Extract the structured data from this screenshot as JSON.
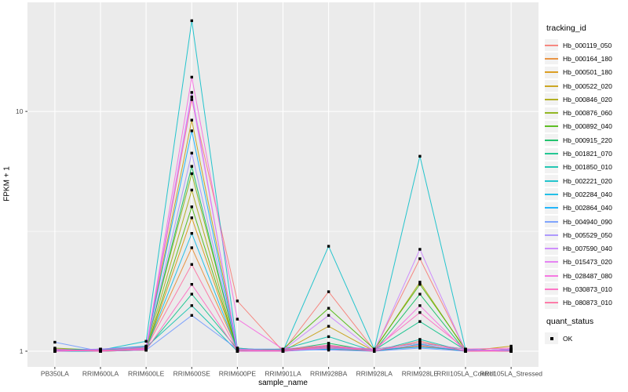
{
  "chart_data": {
    "type": "line",
    "title": "",
    "xlabel": "sample_name",
    "ylabel": "FPKM + 1",
    "y_scale": "log10",
    "ylim": [
      0.86,
      28.5
    ],
    "y_ticks": [
      1,
      10
    ],
    "y_tick_labels": [
      "1",
      "10"
    ],
    "y_minor_gridlines": [
      3.162
    ],
    "grid": "on",
    "panel_bg": "#EBEBEB",
    "grid_color": "#FFFFFF",
    "axis_text_color": "#4D4D4D",
    "point_shape": "filled-square",
    "point_color": "#000000",
    "categories": [
      "PB350LA",
      "RRIM600LA",
      "RRIM600LE",
      "RRIM600SE",
      "RRIM600PE",
      "RRIM901LA",
      "RRIM928BA",
      "RRIM928LA",
      "RRIM928LE",
      "RRII105LA_Control",
      "RRII105LA_Stressed"
    ],
    "series": [
      {
        "name": "Hb_000119_050",
        "color": "#F8766D",
        "values": [
          1.01,
          1.0,
          1.02,
          11.2,
          1.62,
          1.0,
          1.77,
          1.01,
          2.43,
          1.01,
          1.0
        ]
      },
      {
        "name": "Hb_000164_180",
        "color": "#E88526",
        "values": [
          1.0,
          1.01,
          1.03,
          2.7,
          1.02,
          1.01,
          1.02,
          1.0,
          1.05,
          1.0,
          1.01
        ]
      },
      {
        "name": "Hb_000501_180",
        "color": "#D89000",
        "values": [
          1.02,
          1.0,
          1.01,
          3.6,
          1.01,
          1.02,
          1.04,
          1.02,
          1.08,
          1.02,
          1.0
        ]
      },
      {
        "name": "Hb_000522_020",
        "color": "#C49A00",
        "values": [
          1.0,
          1.02,
          1.04,
          9.2,
          1.03,
          1.0,
          1.27,
          1.0,
          1.1,
          1.0,
          1.05
        ]
      },
      {
        "name": "Hb_000846_020",
        "color": "#A9A400",
        "values": [
          1.01,
          1.0,
          1.02,
          4.7,
          1.0,
          1.01,
          1.06,
          1.01,
          1.94,
          1.01,
          1.0
        ]
      },
      {
        "name": "Hb_000876_060",
        "color": "#82AD00",
        "values": [
          1.03,
          1.01,
          1.05,
          5.5,
          1.02,
          1.0,
          1.03,
          1.0,
          1.06,
          1.0,
          1.02
        ]
      },
      {
        "name": "Hb_000892_040",
        "color": "#45B500",
        "values": [
          1.0,
          1.0,
          1.01,
          4.0,
          1.01,
          1.02,
          1.51,
          1.02,
          1.9,
          1.02,
          1.0
        ]
      },
      {
        "name": "Hb_000915_220",
        "color": "#00BB57",
        "values": [
          1.02,
          1.01,
          1.03,
          5.9,
          1.0,
          1.01,
          1.08,
          1.0,
          1.73,
          1.0,
          1.01
        ]
      },
      {
        "name": "Hb_001821_070",
        "color": "#00BF84",
        "values": [
          1.0,
          1.02,
          1.02,
          1.73,
          1.02,
          1.0,
          1.05,
          1.01,
          1.33,
          1.01,
          1.0
        ]
      },
      {
        "name": "Hb_001850_010",
        "color": "#00C0A9",
        "values": [
          1.01,
          1.0,
          1.04,
          1.55,
          1.0,
          1.02,
          1.15,
          1.0,
          1.12,
          1.0,
          1.02
        ]
      },
      {
        "name": "Hb_002221_020",
        "color": "#00BDC8",
        "values": [
          1.02,
          1.01,
          1.1,
          23.9,
          1.03,
          1.0,
          2.74,
          1.02,
          6.5,
          1.02,
          1.0
        ]
      },
      {
        "name": "Hb_002284_040",
        "color": "#00B7E5",
        "values": [
          1.0,
          1.0,
          1.02,
          3.1,
          1.01,
          1.01,
          1.04,
          1.0,
          1.07,
          1.0,
          1.01
        ]
      },
      {
        "name": "Hb_002864_040",
        "color": "#00ABFD",
        "values": [
          1.01,
          1.02,
          1.05,
          8.3,
          1.0,
          1.0,
          1.02,
          1.01,
          1.04,
          1.01,
          1.0
        ]
      },
      {
        "name": "Hb_004940_090",
        "color": "#6C96FF",
        "values": [
          1.09,
          1.0,
          1.01,
          1.41,
          1.02,
          1.02,
          1.01,
          1.0,
          1.03,
          1.0,
          1.02
        ]
      },
      {
        "name": "Hb_005529_050",
        "color": "#A289FF",
        "values": [
          1.0,
          1.01,
          1.03,
          6.7,
          1.01,
          1.0,
          1.05,
          1.02,
          1.08,
          1.02,
          1.0
        ]
      },
      {
        "name": "Hb_007590_040",
        "color": "#C97DFF",
        "values": [
          1.02,
          1.0,
          1.02,
          12.0,
          1.0,
          1.01,
          1.41,
          1.0,
          2.66,
          1.0,
          1.01
        ]
      },
      {
        "name": "Hb_015473_020",
        "color": "#E471F3",
        "values": [
          1.0,
          1.02,
          1.04,
          11.5,
          1.02,
          1.0,
          1.03,
          1.01,
          1.06,
          1.01,
          1.0
        ]
      },
      {
        "name": "Hb_028487_080",
        "color": "#F763DF",
        "values": [
          1.01,
          1.0,
          1.02,
          13.9,
          1.36,
          1.02,
          1.06,
          1.0,
          1.55,
          1.0,
          1.02
        ]
      },
      {
        "name": "Hb_030873_010",
        "color": "#FF62BF",
        "values": [
          1.0,
          1.01,
          1.01,
          1.9,
          1.0,
          1.0,
          1.04,
          1.02,
          1.45,
          1.02,
          1.03
        ]
      },
      {
        "name": "Hb_080873_010",
        "color": "#FF699C",
        "values": [
          1.02,
          1.0,
          1.03,
          2.3,
          1.01,
          1.01,
          1.05,
          1.0,
          1.1,
          1.0,
          1.0
        ]
      }
    ],
    "legend": {
      "color_legend_title": "tracking_id",
      "shape_legend_title": "quant_status",
      "shape_items": [
        {
          "label": "OK"
        }
      ],
      "position": "right"
    }
  }
}
